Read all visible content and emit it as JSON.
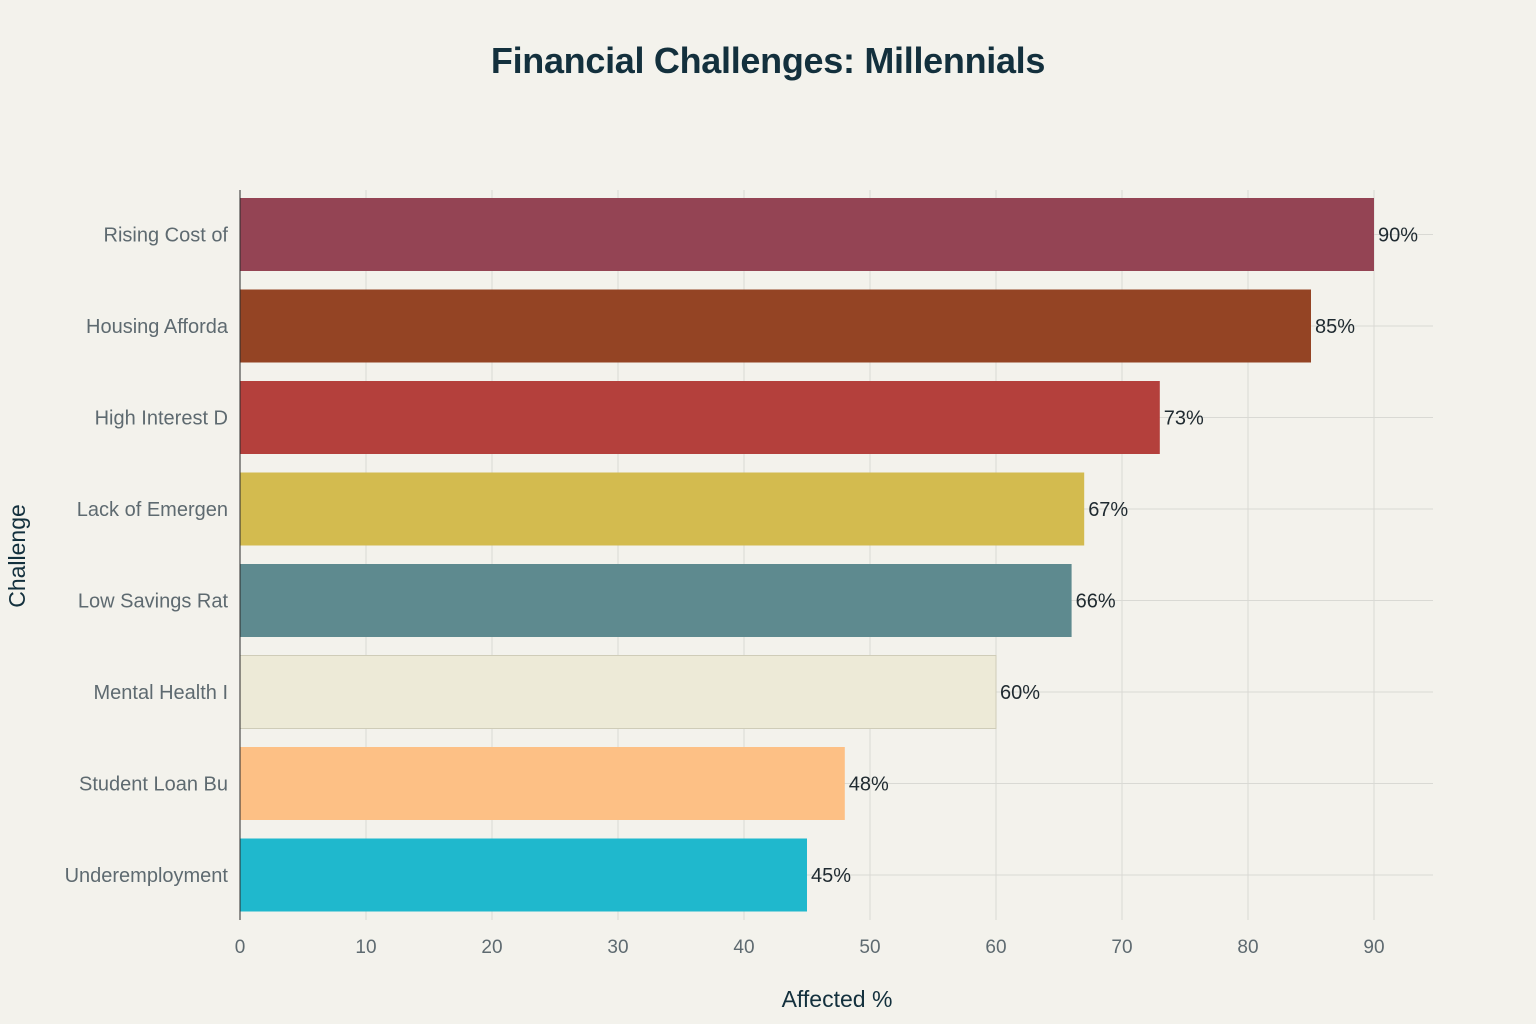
{
  "chart_data": {
    "type": "bar",
    "orientation": "horizontal",
    "title": "Financial Challenges: Millennials",
    "xlabel": "Affected %",
    "ylabel": "Challenge",
    "xlim": [
      0,
      95
    ],
    "xticks": [
      0,
      10,
      20,
      30,
      40,
      50,
      60,
      70,
      80,
      90
    ],
    "grid": true,
    "legend": "none",
    "value_suffix": "%",
    "categories": [
      "Rising Cost of",
      "Housing Afforda",
      "High Interest D",
      "Lack of Emergen",
      "Low Savings Rat",
      "Mental Health I",
      "Student Loan Bu",
      "Underemployment"
    ],
    "values": [
      90,
      85,
      73,
      67,
      66,
      60,
      48,
      45
    ],
    "colors": [
      "#944454",
      "#944424",
      "#b4403c",
      "#d3bb4f",
      "#5e8a8f",
      "#edead7",
      "#fdc085",
      "#1fb8cd"
    ],
    "data_labels": [
      "90%",
      "85%",
      "73%",
      "67%",
      "66%",
      "60%",
      "48%",
      "45%"
    ]
  }
}
